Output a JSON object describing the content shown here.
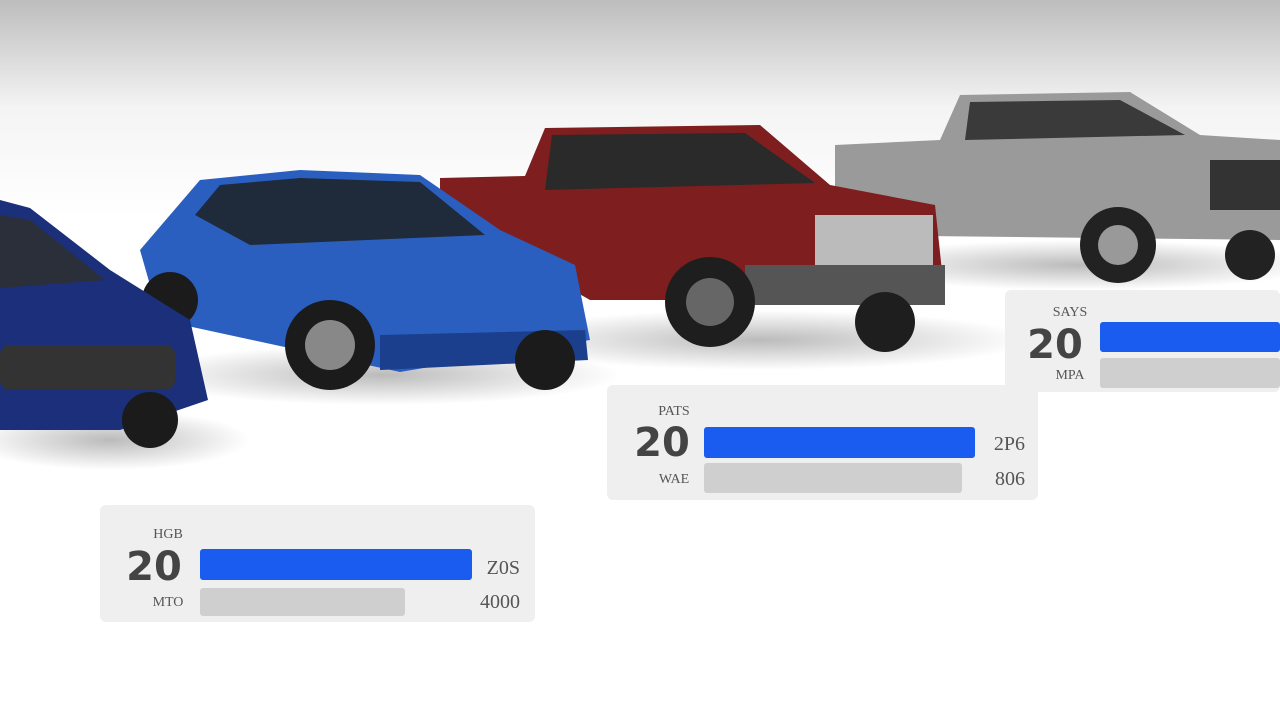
{
  "cards": [
    {
      "top_label": "HGB",
      "number": 20,
      "right_top": "Z0S",
      "bottom_label": "MTO",
      "right_bottom": "4000"
    },
    {
      "top_label": "PATS",
      "number": 20,
      "right_top": "2P6",
      "bottom_label": "WAE",
      "right_bottom": "806"
    },
    {
      "top_label": "SAYS",
      "number": 20,
      "bottom_label": "MPA"
    }
  ]
}
